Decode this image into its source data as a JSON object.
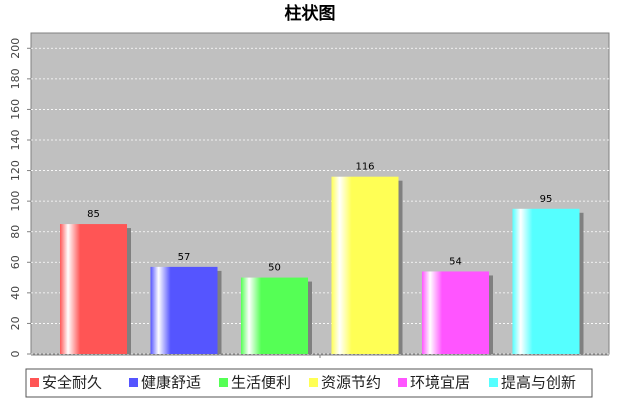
{
  "chart_data": {
    "type": "bar",
    "title": "柱状图",
    "categories": [
      null
    ],
    "series": [
      {
        "name": "安全耐久",
        "color": "#ff5555",
        "values": [
          85
        ]
      },
      {
        "name": "健康舒适",
        "color": "#5555ff",
        "values": [
          57
        ]
      },
      {
        "name": "生活便利",
        "color": "#55ff55",
        "values": [
          50
        ]
      },
      {
        "name": "资源节约",
        "color": "#ffff55",
        "values": [
          116
        ]
      },
      {
        "name": "环境宜居",
        "color": "#ff55ff",
        "values": [
          54
        ]
      },
      {
        "name": "提高与创新",
        "color": "#55ffff",
        "values": [
          95
        ]
      }
    ],
    "ylim": [
      0,
      210
    ],
    "yticks": [
      0,
      20,
      40,
      60,
      80,
      100,
      120,
      140,
      160,
      180,
      200
    ],
    "grid": true,
    "legend": "bottom"
  }
}
